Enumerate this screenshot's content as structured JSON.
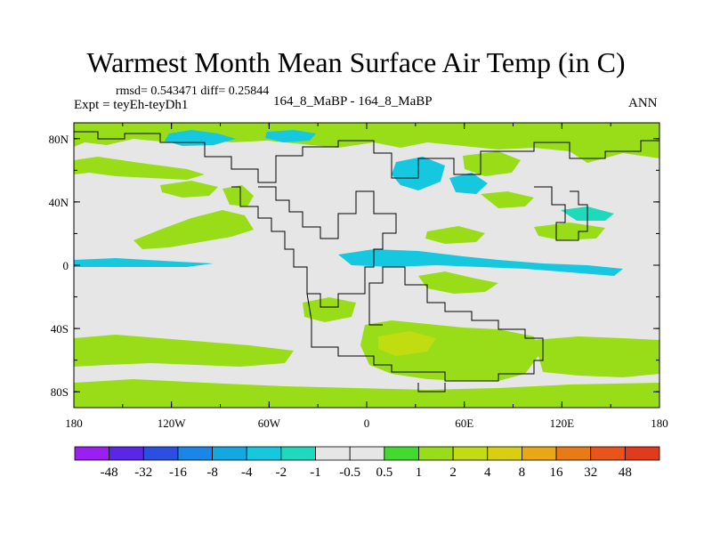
{
  "title": "Warmest Month Mean Surface Air Temp (in C)",
  "stats": "rmsd= 0.543471 diff= 0.25844",
  "expt": "Expt = teyEh-teyDh1",
  "subtitle": "164_8_MaBP - 164_8_MaBP",
  "season": "ANN",
  "axes": {
    "lon_labels": [
      "180",
      "120W",
      "60W",
      "0",
      "60E",
      "120E",
      "180"
    ],
    "lat_labels": [
      "80N",
      "40N",
      "0",
      "40S",
      "80S"
    ]
  },
  "colorbar": {
    "labels": [
      "-48",
      "-32",
      "-16",
      "-8",
      "-4",
      "-2",
      "-1",
      "-0.5",
      "0.5",
      "1",
      "2",
      "4",
      "8",
      "16",
      "32",
      "48"
    ],
    "colors": [
      "#9a1ff0",
      "#5a27e6",
      "#2b4fe0",
      "#1a86e8",
      "#13a8e2",
      "#15c8e0",
      "#1fd9bd",
      "#e6e6e6",
      "#43da2f",
      "#98dd18",
      "#c2dc12",
      "#d9cf10",
      "#e8a713",
      "#ea7a16",
      "#e8541b",
      "#e13a1c"
    ]
  },
  "map_colors": {
    "neutral": "#e6e6e6",
    "positive_small": "#98dd18",
    "positive_medium": "#c2dc12",
    "negative_small": "#1fd9bd",
    "negative_medium": "#15c8e0"
  }
}
